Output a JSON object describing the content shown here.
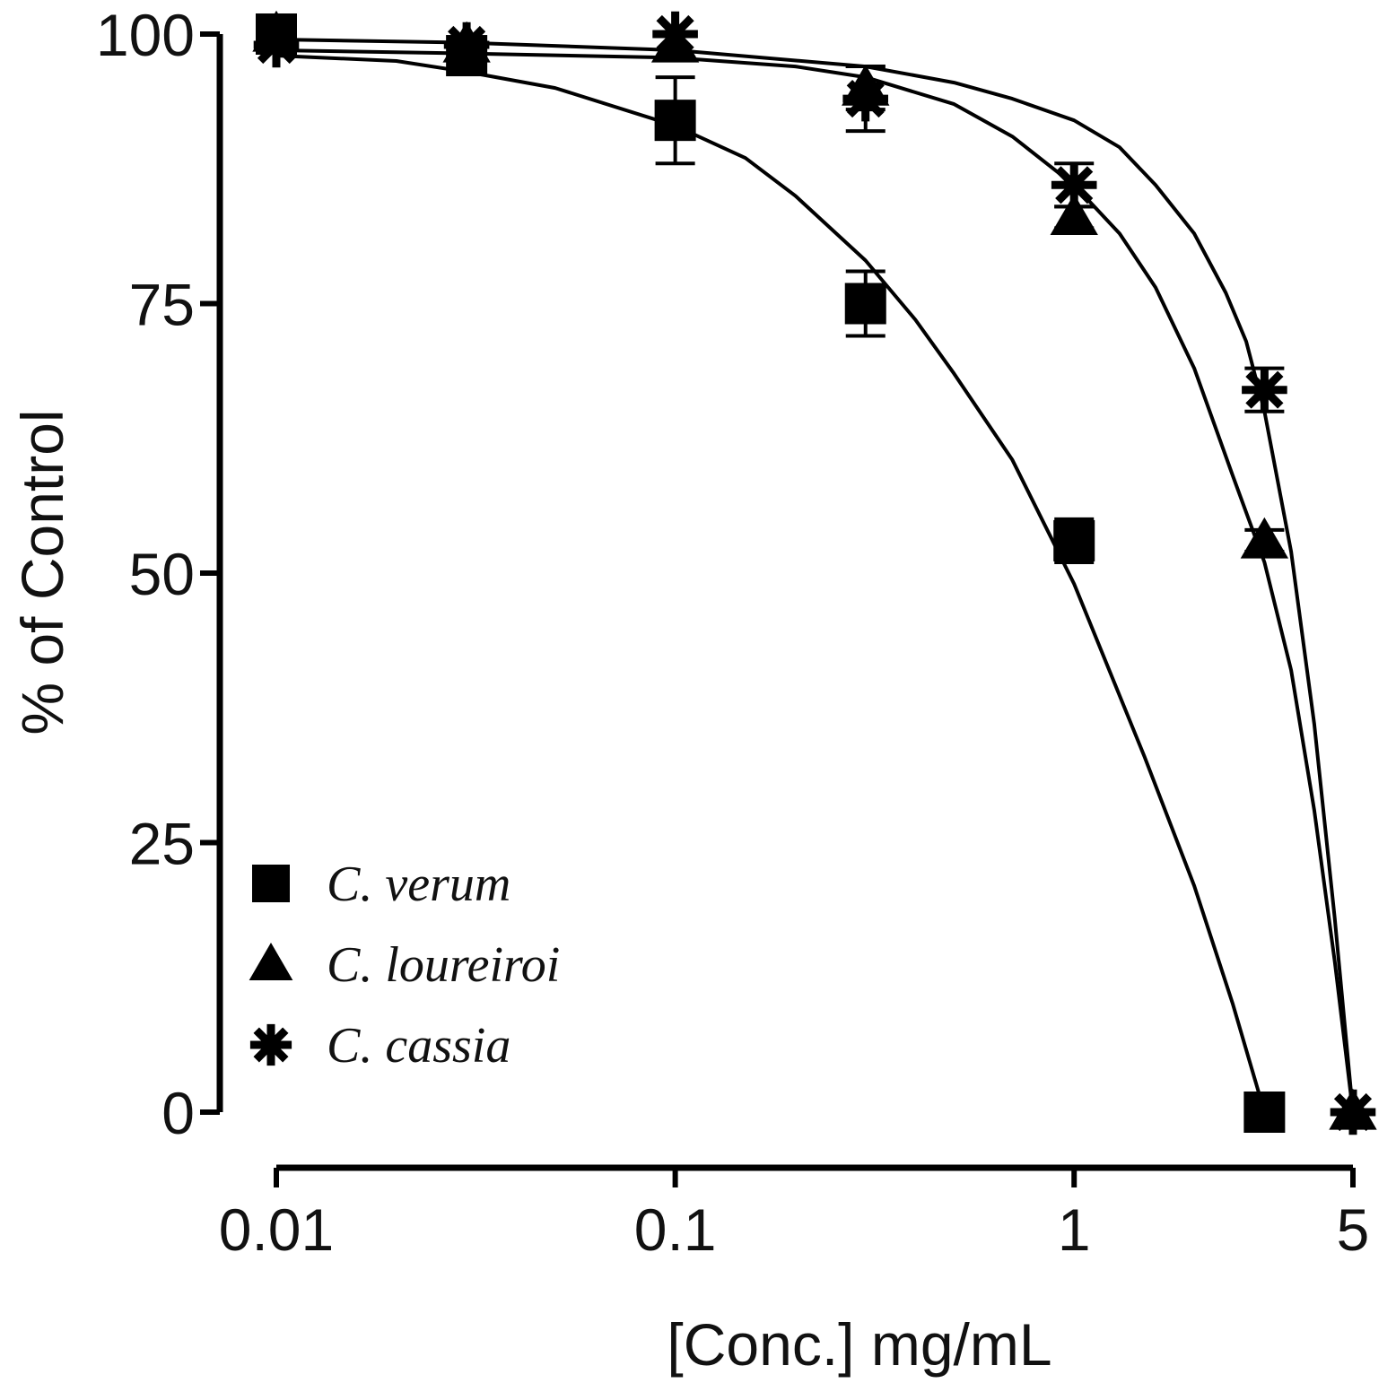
{
  "chart_data": {
    "type": "line",
    "title": "",
    "xlabel": "[Conc.] mg/mL",
    "ylabel": "% of Control",
    "xscale": "log",
    "xlim": [
      0.01,
      5
    ],
    "ylim": [
      0,
      100
    ],
    "xticks": [
      {
        "value": 0.01,
        "label": "0.01"
      },
      {
        "value": 0.1,
        "label": "0.1"
      },
      {
        "value": 1,
        "label": "1"
      },
      {
        "value": 5,
        "label": "5"
      }
    ],
    "yticks": [
      {
        "value": 0,
        "label": "0"
      },
      {
        "value": 25,
        "label": "25"
      },
      {
        "value": 50,
        "label": "50"
      },
      {
        "value": 75,
        "label": "75"
      },
      {
        "value": 100,
        "label": "100"
      }
    ],
    "grid": false,
    "legend_position": "bottom-left",
    "series": [
      {
        "name": "C. verum",
        "marker": "square",
        "x": [
          0.01,
          0.03,
          0.1,
          0.3,
          1,
          3,
          5
        ],
        "y": [
          100,
          98,
          92,
          75,
          53,
          0,
          null
        ],
        "error": [
          0,
          0,
          4,
          3,
          2,
          0,
          null
        ],
        "curve_x": [
          0.01,
          0.02,
          0.03,
          0.05,
          0.1,
          0.15,
          0.2,
          0.3,
          0.4,
          0.5,
          0.7,
          1,
          1.5,
          2,
          2.5,
          3
        ],
        "curve_y": [
          98,
          97.5,
          96.5,
          95,
          91.5,
          88.5,
          85,
          79,
          73.5,
          68.5,
          60.5,
          49,
          33,
          21,
          10,
          0
        ]
      },
      {
        "name": "C. loureiroi",
        "marker": "triangle",
        "x": [
          0.01,
          0.03,
          0.1,
          0.3,
          1,
          3,
          5
        ],
        "y": [
          100,
          99,
          99,
          95,
          83,
          53,
          0
        ],
        "error": [
          0,
          0,
          0,
          2,
          1,
          1,
          0
        ],
        "curve_x": [
          0.01,
          0.03,
          0.1,
          0.2,
          0.3,
          0.5,
          0.7,
          1,
          1.3,
          1.6,
          2,
          2.5,
          3,
          3.5,
          4,
          4.5,
          5
        ],
        "curve_y": [
          98.5,
          98.2,
          97.8,
          97,
          96,
          93.5,
          90.5,
          86,
          81.5,
          76.5,
          69,
          59,
          51,
          41,
          28,
          14,
          0
        ]
      },
      {
        "name": "C. cassia",
        "marker": "star",
        "x": [
          0.01,
          0.03,
          0.1,
          0.3,
          1,
          3,
          5
        ],
        "y": [
          99,
          99,
          100,
          94,
          86,
          67,
          0
        ],
        "error": [
          0,
          0,
          0,
          3,
          2,
          2,
          0
        ],
        "curve_x": [
          0.01,
          0.03,
          0.1,
          0.3,
          0.5,
          0.7,
          1,
          1.3,
          1.6,
          2,
          2.4,
          2.7,
          3,
          3.5,
          4,
          4.5,
          5
        ],
        "curve_y": [
          99.5,
          99.2,
          98.5,
          97,
          95.5,
          94,
          92,
          89.5,
          86,
          81.5,
          76,
          71.5,
          65,
          52,
          36,
          18,
          0
        ]
      }
    ]
  }
}
